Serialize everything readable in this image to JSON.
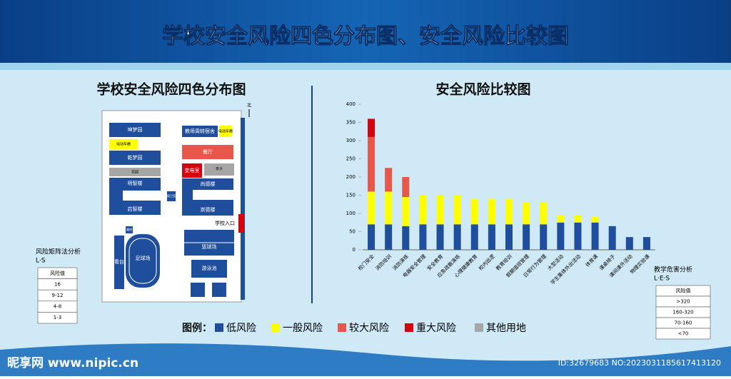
{
  "header": {
    "title": "学校安全风险四色分布图、安全风险比较图"
  },
  "map": {
    "title": "学校安全风险四色分布图",
    "labels": [
      "坤梦园",
      "电动车棚",
      "乾梦园",
      "花园",
      "明智楼",
      "启智楼",
      "保卫室",
      "教师周转宿舍",
      "电动车棚",
      "餐厅",
      "变电室",
      "亭子",
      "尚德楼",
      "崇德楼",
      "学校入口",
      "器材",
      "看台",
      "足球场",
      "篮球场",
      "游泳池",
      "北"
    ]
  },
  "left_table": {
    "title": "风险矩阵法分析",
    "subtitle": "L·S",
    "rows": [
      "风险值",
      "16",
      "9-12",
      "4-8",
      "1-3"
    ]
  },
  "right_table": {
    "title": "教学危害分析",
    "subtitle": "L·E·S",
    "rows": [
      "风险值",
      ">320",
      "160-320",
      "70-160",
      "<70"
    ]
  },
  "legend": {
    "title": "图例：",
    "other": {
      "label": "其他用地",
      "color": "#a6a6a6"
    }
  },
  "footer": {
    "site": "昵享网 www.nipic.cn",
    "id": "ID:32679683 NO:20230311856174131​20"
  },
  "chart_data": {
    "type": "stacked_bar",
    "title": "安全风险比较图",
    "categories": [
      "校门安全",
      "消防培训",
      "消防演练",
      "电器安全管理",
      "安全教育",
      "应急疏散演练",
      "心理健康教育",
      "校内巡逻",
      "教育培训",
      "假期值班管理",
      "日常行为管理",
      "大型活动",
      "学生集体外出活动",
      "体育课",
      "课桌椅子",
      "课间课外活动",
      "物理实验课"
    ],
    "series": [
      {
        "name": "低风险",
        "color": "#1f4e9c",
        "values": [
          70,
          70,
          65,
          70,
          70,
          70,
          70,
          70,
          70,
          70,
          70,
          75,
          75,
          75,
          65,
          35,
          35
        ]
      },
      {
        "name": "一般风险",
        "color": "#ffff00",
        "values": [
          90,
          90,
          80,
          80,
          80,
          80,
          70,
          70,
          70,
          60,
          60,
          20,
          20,
          15,
          0,
          0,
          0
        ]
      },
      {
        "name": "较大风险",
        "color": "#e8584a",
        "values": [
          150,
          65,
          55,
          0,
          0,
          0,
          0,
          0,
          0,
          0,
          0,
          0,
          0,
          0,
          0,
          0,
          0
        ]
      },
      {
        "name": "重大风险",
        "color": "#d7000f",
        "values": [
          50,
          0,
          0,
          0,
          0,
          0,
          0,
          0,
          0,
          0,
          0,
          0,
          0,
          0,
          0,
          0,
          0
        ]
      }
    ],
    "ylim": [
      0,
      400
    ],
    "yticks": [
      0,
      50,
      100,
      150,
      200,
      250,
      300,
      350,
      400
    ]
  }
}
